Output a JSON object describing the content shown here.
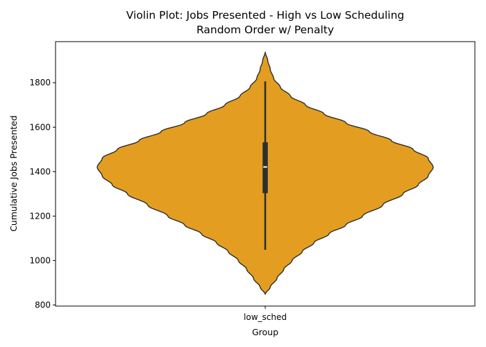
{
  "chart_data": {
    "type": "violin",
    "title_lines": [
      "Violin Plot: Jobs Presented - High vs Low Scheduling",
      "Random Order w/ Penalty"
    ],
    "xlabel": "Group",
    "ylabel": "Cumulative Jobs Presented",
    "categories": [
      "low_sched"
    ],
    "ylim": [
      795,
      1985
    ],
    "yticks": [
      800,
      1000,
      1200,
      1400,
      1600,
      1800
    ],
    "grid": false,
    "violin_color": "#E39E21",
    "violins": [
      {
        "category": "low_sched",
        "kde_min": 848,
        "kde_max": 1938,
        "whisker_low": 1048,
        "whisker_high": 1806,
        "q1": 1303,
        "median": 1421,
        "q3": 1532,
        "density_profile": [
          [
            848,
            0.0
          ],
          [
            880,
            0.03
          ],
          [
            920,
            0.07
          ],
          [
            960,
            0.11
          ],
          [
            1000,
            0.16
          ],
          [
            1040,
            0.22
          ],
          [
            1080,
            0.29
          ],
          [
            1120,
            0.38
          ],
          [
            1160,
            0.48
          ],
          [
            1200,
            0.58
          ],
          [
            1250,
            0.7
          ],
          [
            1300,
            0.82
          ],
          [
            1340,
            0.91
          ],
          [
            1380,
            0.97
          ],
          [
            1420,
            1.0
          ],
          [
            1460,
            0.97
          ],
          [
            1500,
            0.88
          ],
          [
            1540,
            0.75
          ],
          [
            1580,
            0.62
          ],
          [
            1620,
            0.48
          ],
          [
            1660,
            0.35
          ],
          [
            1700,
            0.24
          ],
          [
            1740,
            0.15
          ],
          [
            1780,
            0.09
          ],
          [
            1820,
            0.05
          ],
          [
            1860,
            0.03
          ],
          [
            1900,
            0.015
          ],
          [
            1938,
            0.0
          ]
        ]
      }
    ]
  }
}
